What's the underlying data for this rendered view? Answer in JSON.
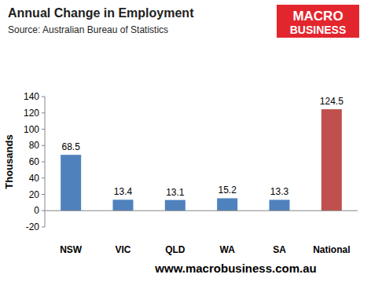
{
  "chart_data": {
    "type": "bar",
    "title": "Annual Change in Employment",
    "subtitle": "Source:  Australian Bureau of Statistics",
    "y_label": "Thousands",
    "annotations": [
      "MACRO",
      "BUSINESS",
      "www.macrobusiness.com.au"
    ],
    "categories": [
      "NSW",
      "VIC",
      "QLD",
      "WA",
      "SA",
      "National"
    ],
    "values": [
      68.5,
      13.4,
      13.1,
      15.2,
      13.3,
      124.5
    ],
    "colors": [
      "#4f81bd",
      "#4f81bd",
      "#4f81bd",
      "#4f81bd",
      "#4f81bd",
      "#c0504d"
    ],
    "ylim": [
      -20,
      140
    ],
    "yticks": [
      -20,
      0,
      20,
      40,
      60,
      80,
      100,
      120,
      140
    ],
    "grid": false,
    "data_labels": true
  }
}
